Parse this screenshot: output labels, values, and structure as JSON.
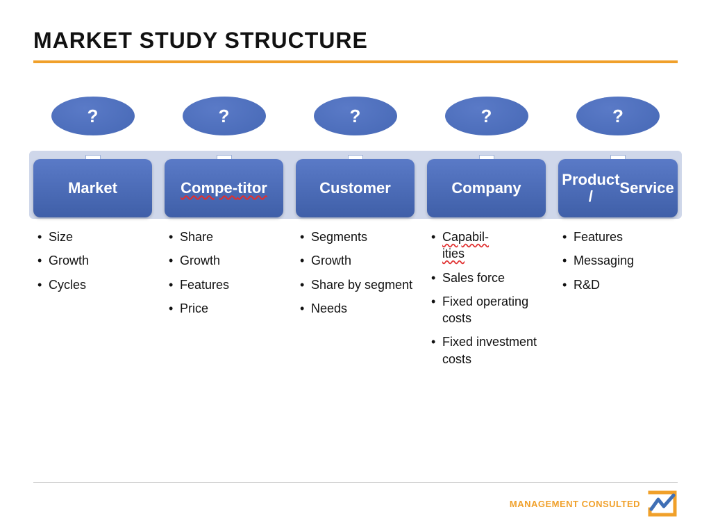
{
  "title": "MARKET STUDY STRUCTURE",
  "title_color": "#111111",
  "title_fontsize": 32,
  "rule_color": "#f0a02a",
  "back_band_color": "#cfd7ea",
  "ellipse": {
    "fill": "#5a7ac7",
    "text": "?",
    "text_color": "#ffffff"
  },
  "card": {
    "fill_top": "#5a7ac7",
    "fill_bottom": "#3f5fa8",
    "text_color": "#ffffff",
    "border_radius": 10
  },
  "bullet_color": "#111111",
  "columns": [
    {
      "label": "Market",
      "label_parts": [
        {
          "t": "Market",
          "spell": false
        }
      ],
      "items": [
        {
          "t": "Size",
          "spell": false
        },
        {
          "t": "Growth",
          "spell": false
        },
        {
          "t": "Cycles",
          "spell": false
        }
      ]
    },
    {
      "label": "Compe-\ntitor",
      "label_parts": [
        {
          "t": "Compe-",
          "spell": true
        },
        {
          "t": "titor",
          "spell": true
        }
      ],
      "items": [
        {
          "t": "Share",
          "spell": false
        },
        {
          "t": "Growth",
          "spell": false
        },
        {
          "t": "Features",
          "spell": false
        },
        {
          "t": "Price",
          "spell": false
        }
      ]
    },
    {
      "label": "Customer",
      "label_parts": [
        {
          "t": "Customer",
          "spell": false
        }
      ],
      "items": [
        {
          "t": "Segments",
          "spell": false
        },
        {
          "t": "Growth",
          "spell": false
        },
        {
          "t": "Share by segment",
          "spell": false
        },
        {
          "t": "Needs",
          "spell": false
        }
      ]
    },
    {
      "label": "Company",
      "label_parts": [
        {
          "t": "Company",
          "spell": false
        }
      ],
      "items": [
        {
          "t": "Capabil-\nities",
          "spell": true
        },
        {
          "t": "Sales force",
          "spell": false
        },
        {
          "t": "Fixed operating costs",
          "spell": false
        },
        {
          "t": "Fixed investment costs",
          "spell": false
        }
      ]
    },
    {
      "label": "Product / Service",
      "label_parts": [
        {
          "t": "Product /",
          "spell": false
        },
        {
          "t": "Service",
          "spell": false
        }
      ],
      "items": [
        {
          "t": "Features",
          "spell": false
        },
        {
          "t": "Messaging",
          "spell": false
        },
        {
          "t": "R&D",
          "spell": false
        }
      ]
    }
  ],
  "footer": {
    "brand_text": "MANAGEMENT CONSULTED",
    "brand_text_color": "#f0a02a",
    "logo_frame_color": "#f0a02a",
    "logo_line_color": "#3f6fb5"
  }
}
